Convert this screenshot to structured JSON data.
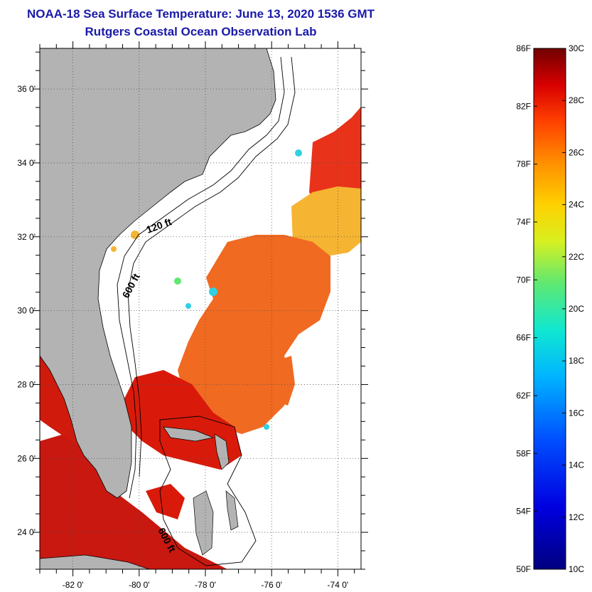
{
  "title": {
    "line1": "NOAA-18 Sea Surface Temperature:  June 13, 2020 1536 GMT",
    "line2": "Rutgers Coastal Ocean Observation Lab"
  },
  "map": {
    "lat_ticks": [
      {
        "value": 36,
        "label": "36 0'"
      },
      {
        "value": 34,
        "label": "34 0'"
      },
      {
        "value": 32,
        "label": "32 0'"
      },
      {
        "value": 30,
        "label": "30 0'"
      },
      {
        "value": 28,
        "label": "28 0'"
      },
      {
        "value": 26,
        "label": "26 0'"
      },
      {
        "value": 24,
        "label": "24 0'"
      }
    ],
    "lon_ticks": [
      {
        "value": -82,
        "label": "-82 0'"
      },
      {
        "value": -80,
        "label": "-80 0'"
      },
      {
        "value": -78,
        "label": "-78 0'"
      },
      {
        "value": -76,
        "label": "-76 0'"
      },
      {
        "value": -74,
        "label": "-74 0'"
      }
    ],
    "contour_labels": {
      "c120": "120 ft",
      "c600a": "600 ft",
      "c600b": "600 ft"
    },
    "colors": {
      "land": "#b3b3b3",
      "warm": "#d91a0a",
      "orange": "#f0641e",
      "yellow": "#f5b42d",
      "cold": "#2fd0e0"
    }
  },
  "colorbar": {
    "fahrenheit": [
      "86F",
      "82F",
      "78F",
      "74F",
      "70F",
      "66F",
      "62F",
      "58F",
      "54F",
      "50F"
    ],
    "celsius": [
      "30C",
      "28C",
      "26C",
      "24C",
      "22C",
      "20C",
      "18C",
      "16C",
      "14C",
      "12C",
      "10C"
    ]
  }
}
